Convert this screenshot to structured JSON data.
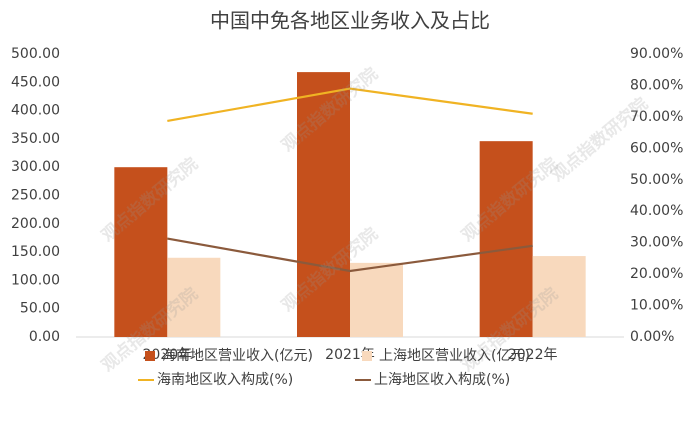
{
  "chart_data": {
    "type": "bar_line",
    "title": "中国中免各地区业务收入及占比",
    "watermark": "观点指数研究院",
    "categories": [
      "2020年",
      "2021年",
      "2022年"
    ],
    "series": [
      {
        "name": "海南地区营业收入(亿元)",
        "type": "bar",
        "color": "#c5501c",
        "values": [
          300,
          468,
          346
        ]
      },
      {
        "name": "上海地区营业收入(亿元)",
        "type": "bar",
        "color": "#f8d9bd",
        "values": [
          140,
          131,
          143
        ]
      },
      {
        "name": "海南地区收入构成(%)",
        "type": "line",
        "axis": "y2",
        "color": "#f0b323",
        "values": [
          68.7,
          79.0,
          71.0
        ]
      },
      {
        "name": "上海地区收入构成(%)",
        "type": "line",
        "axis": "y2",
        "color": "#8b5a3c",
        "values": [
          31.3,
          21.0,
          29.0
        ]
      }
    ],
    "ylim": [
      0,
      500
    ],
    "yticks": [
      {
        "value": 0,
        "label": "0.00"
      },
      {
        "value": 50,
        "label": "50.00"
      },
      {
        "value": 100,
        "label": "100.00"
      },
      {
        "value": 150,
        "label": "150.00"
      },
      {
        "value": 200,
        "label": "200.00"
      },
      {
        "value": 250,
        "label": "250.00"
      },
      {
        "value": 300,
        "label": "300.00"
      },
      {
        "value": 350,
        "label": "350.00"
      },
      {
        "value": 400,
        "label": "400.00"
      },
      {
        "value": 450,
        "label": "450.00"
      },
      {
        "value": 500,
        "label": "500.00"
      }
    ],
    "y2lim": [
      0,
      90
    ],
    "y2ticks": [
      {
        "value": 0,
        "label": "0.00%"
      },
      {
        "value": 10,
        "label": "10.00%"
      },
      {
        "value": 20,
        "label": "20.00%"
      },
      {
        "value": 30,
        "label": "30.00%"
      },
      {
        "value": 40,
        "label": "40.00%"
      },
      {
        "value": 50,
        "label": "50.00%"
      },
      {
        "value": 60,
        "label": "60.00%"
      },
      {
        "value": 70,
        "label": "70.00%"
      },
      {
        "value": 80,
        "label": "80.00%"
      },
      {
        "value": 90,
        "label": "90.00%"
      }
    ],
    "grid": false
  }
}
